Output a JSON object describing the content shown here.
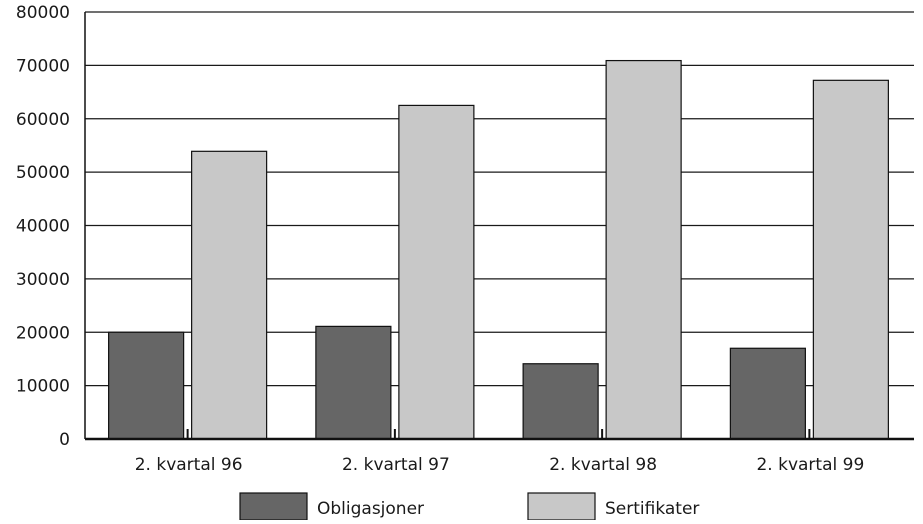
{
  "chart_data": {
    "type": "bar",
    "title": "",
    "xlabel": "",
    "ylabel": "",
    "categories": [
      "2. kvartal 96",
      "2. kvartal 97",
      "2. kvartal 98",
      "2. kvartal 99"
    ],
    "series": [
      {
        "name": "Obligasjoner",
        "values": [
          20000,
          21100,
          14100,
          17000
        ],
        "color": "#666666"
      },
      {
        "name": "Sertifikater",
        "values": [
          53900,
          62500,
          70900,
          67200
        ],
        "color": "#c8c8c8"
      }
    ],
    "ylim": [
      0,
      80000
    ],
    "yticks": [
      "0",
      "10000",
      "20000",
      "30000",
      "40000",
      "50000",
      "60000",
      "70000",
      "80000"
    ],
    "grid": true,
    "legend_position": "bottom"
  }
}
